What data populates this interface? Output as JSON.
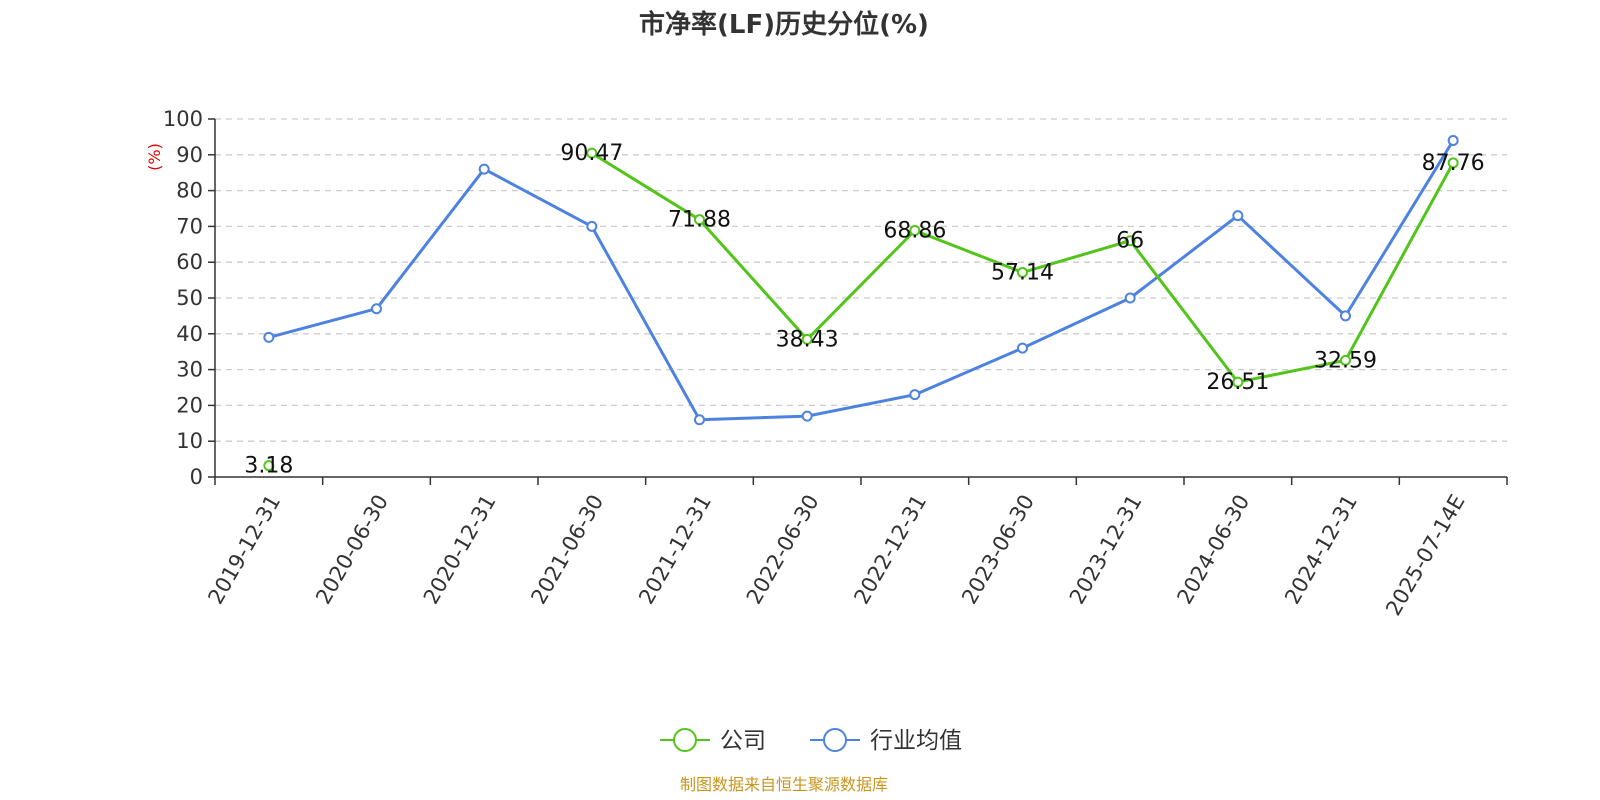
{
  "chart_data": {
    "type": "line",
    "title": "市净率(LF)历史分位(%)",
    "ylabel": "(%)",
    "ylim": [
      0,
      100
    ],
    "yticks": [
      0,
      10,
      20,
      30,
      40,
      50,
      60,
      70,
      80,
      90,
      100
    ],
    "grid": "dashed-horizontal",
    "legend_position": "bottom-center",
    "categories": [
      "2019-12-31",
      "2020-06-30",
      "2020-12-31",
      "2021-06-30",
      "2021-12-31",
      "2022-06-30",
      "2022-12-31",
      "2023-06-30",
      "2023-12-31",
      "2024-06-30",
      "2024-12-31",
      "2025-07-14E"
    ],
    "series": [
      {
        "name": "公司",
        "color": "#52c41a",
        "values": [
          3.18,
          null,
          null,
          90.47,
          71.88,
          38.43,
          68.86,
          57.14,
          66,
          26.51,
          32.59,
          87.76
        ],
        "labels": [
          "3.18",
          null,
          null,
          "90.47",
          "71.88",
          "38.43",
          "68.86",
          "57.14",
          "66",
          "26.51",
          "32.59",
          "87.76"
        ]
      },
      {
        "name": "行业均值",
        "color": "#4d82e0",
        "values": [
          39,
          47,
          86,
          70,
          16,
          17,
          23,
          36,
          50,
          73,
          45,
          94
        ]
      }
    ],
    "source": "制图数据来自恒生聚源数据库",
    "ylabel_color": "#e60000",
    "source_color": "#c8961e"
  }
}
